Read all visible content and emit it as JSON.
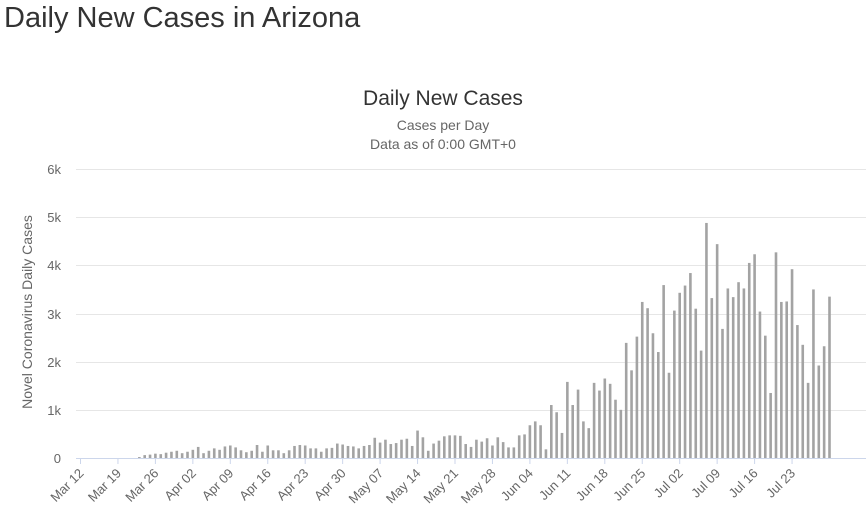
{
  "page": {
    "title": "Daily New Cases in Arizona"
  },
  "chart_data": {
    "type": "bar",
    "title": "Daily New Cases",
    "subtitle": "Cases per Day",
    "subtitle2": "Data as of 0:00 GMT+0",
    "xlabel": "",
    "ylabel": "Novel Coronavirus Daily Cases",
    "ylim": [
      0,
      6000
    ],
    "yticks": [
      0,
      1000,
      2000,
      3000,
      4000,
      5000,
      6000
    ],
    "ytick_labels": [
      "0",
      "1k",
      "2k",
      "3k",
      "4k",
      "5k",
      "6k"
    ],
    "xtick_labels": [
      "Mar 12",
      "Mar 19",
      "Mar 26",
      "Apr 02",
      "Apr 09",
      "Apr 16",
      "Apr 23",
      "Apr 30",
      "May 07",
      "May 14",
      "May 21",
      "May 28",
      "Jun 04",
      "Jun 11",
      "Jun 18",
      "Jun 25",
      "Jul 02",
      "Jul 09",
      "Jul 16",
      "Jul 23"
    ],
    "bar_color": "#a3a3a3",
    "start_date": "Mar 12",
    "values": [
      0,
      0,
      0,
      0,
      0,
      0,
      0,
      0,
      0,
      0,
      0,
      20,
      60,
      70,
      90,
      80,
      110,
      130,
      150,
      100,
      130,
      170,
      230,
      100,
      150,
      200,
      170,
      240,
      260,
      220,
      160,
      120,
      150,
      270,
      130,
      260,
      160,
      160,
      100,
      160,
      250,
      270,
      260,
      200,
      200,
      130,
      200,
      210,
      300,
      280,
      250,
      240,
      200,
      250,
      270,
      420,
      320,
      380,
      290,
      310,
      380,
      400,
      250,
      570,
      430,
      150,
      300,
      360,
      450,
      470,
      470,
      460,
      290,
      230,
      380,
      340,
      410,
      260,
      430,
      330,
      220,
      220,
      470,
      490,
      680,
      760,
      680,
      180,
      1100,
      950,
      520,
      1580,
      1100,
      1420,
      760,
      620,
      1560,
      1400,
      1650,
      1540,
      1210,
      1000,
      2390,
      1820,
      2520,
      3240,
      3110,
      2590,
      2200,
      3590,
      1770,
      3060,
      3430,
      3580,
      3840,
      3100,
      2230,
      4880,
      3320,
      4440,
      2680,
      3520,
      3340,
      3650,
      3520,
      4050,
      4230,
      3040,
      2540,
      1350,
      4270,
      3240,
      3250,
      3920,
      2760,
      2350,
      1560,
      3500,
      1920,
      2320,
      3350
    ]
  }
}
